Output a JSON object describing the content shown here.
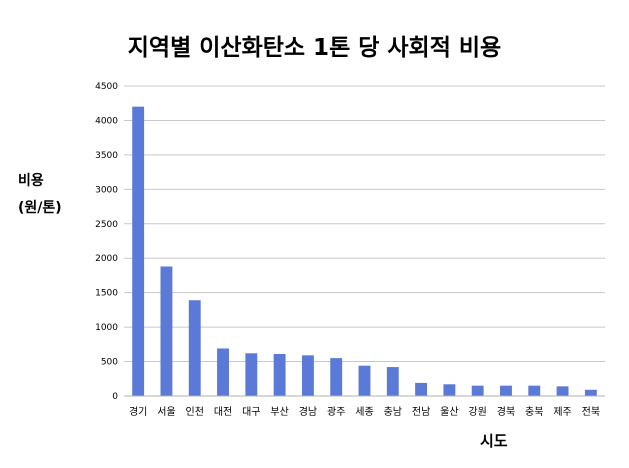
{
  "chart_data": {
    "type": "bar",
    "title": "지역별 이산화탄소 1톤 당 사회적 비용",
    "ylabel_line1": "비용",
    "ylabel_line2": "(원/톤)",
    "xlabel": "시도",
    "categories": [
      "경기",
      "서울",
      "인천",
      "대전",
      "대구",
      "부산",
      "경남",
      "광주",
      "세종",
      "충남",
      "전남",
      "울산",
      "강원",
      "경북",
      "충북",
      "제주",
      "전북"
    ],
    "values": [
      4200,
      1880,
      1390,
      690,
      620,
      610,
      590,
      550,
      440,
      420,
      190,
      170,
      150,
      150,
      150,
      140,
      90
    ],
    "ylim": [
      0,
      4500
    ],
    "yticks": [
      0,
      500,
      1000,
      1500,
      2000,
      2500,
      3000,
      3500,
      4000,
      4500
    ],
    "grid": true,
    "bar_color": "#5b79d6",
    "grid_color": "#c8c8c8"
  }
}
